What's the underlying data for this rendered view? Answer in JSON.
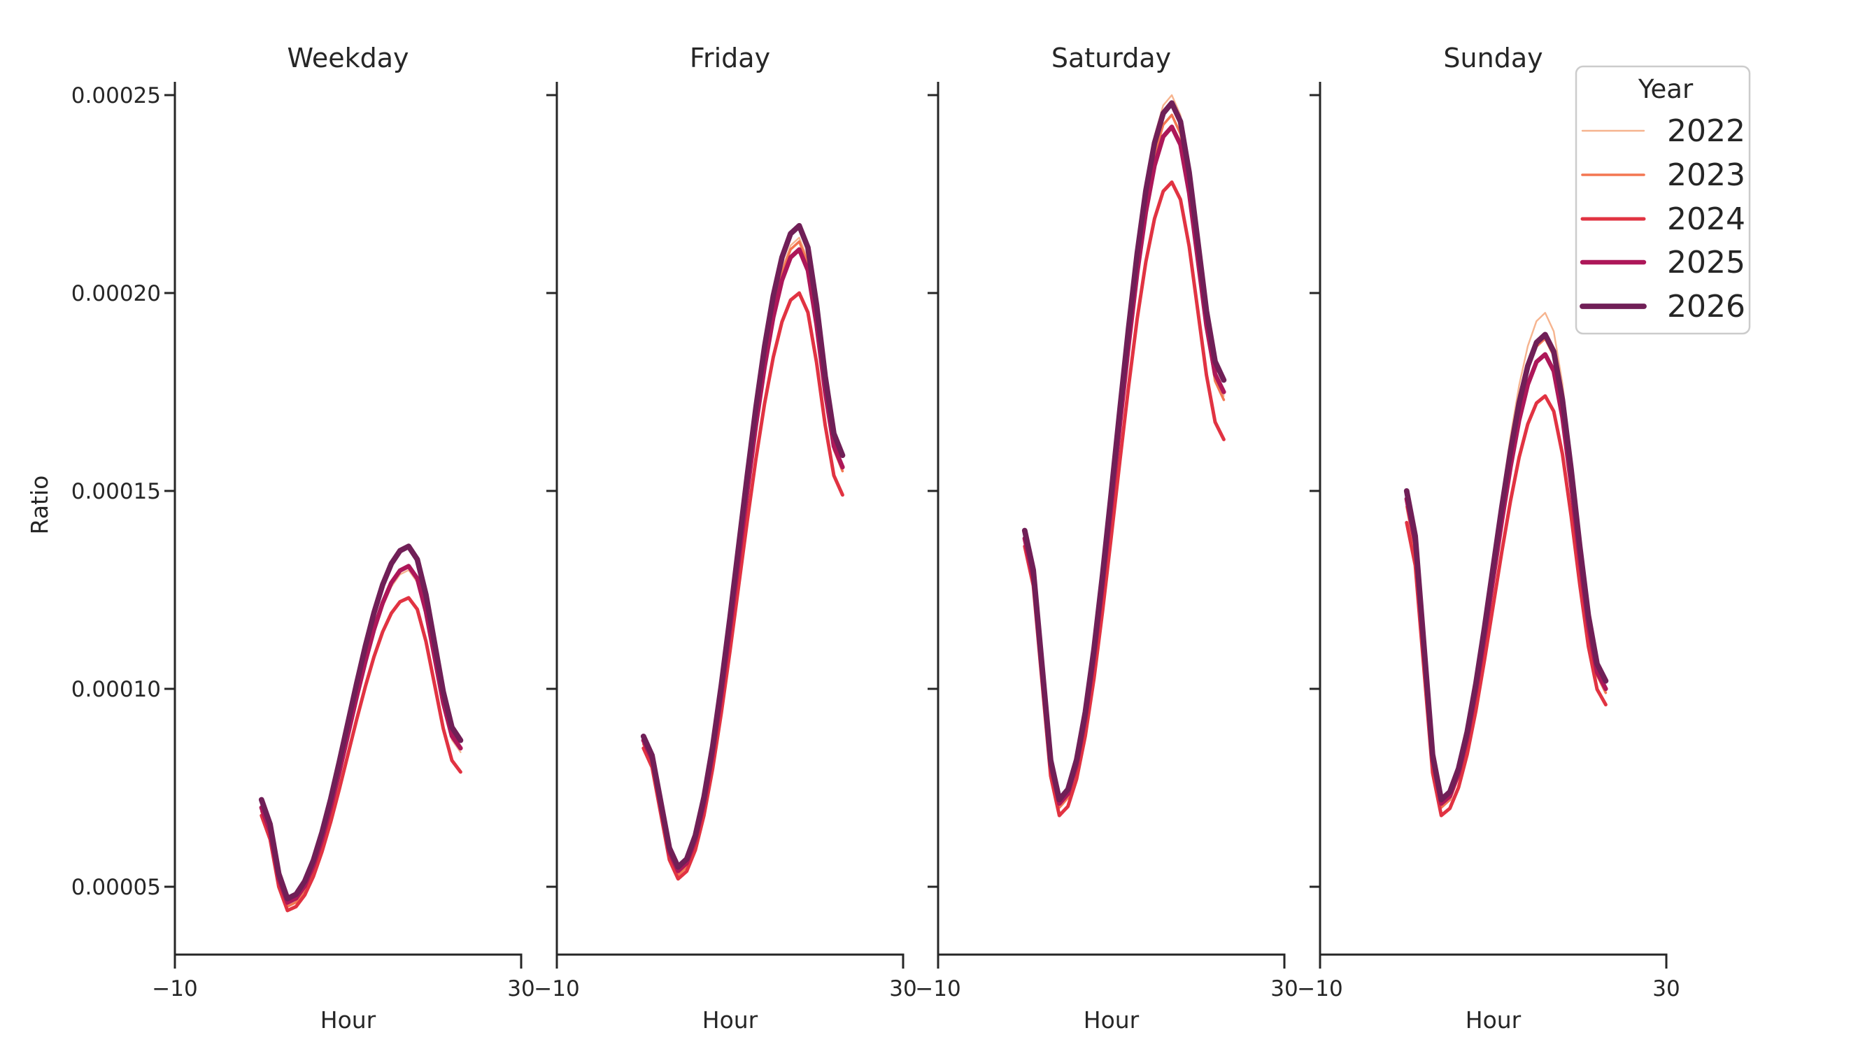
{
  "figure": {
    "background": "#ffffff",
    "text_color": "#262626",
    "spine_color": "#262626",
    "legend_border_color": "#cccccc"
  },
  "y_axis": {
    "label": "Ratio",
    "ticks": [
      {
        "value_x1e5": 5,
        "label": "0.00005"
      },
      {
        "value_x1e5": 10,
        "label": "0.00010"
      },
      {
        "value_x1e5": 15,
        "label": "0.00015"
      },
      {
        "value_x1e5": 20,
        "label": "0.00020"
      },
      {
        "value_x1e5": 25,
        "label": "0.00025"
      }
    ]
  },
  "x_axis": {
    "label": "Hour",
    "ticks": [
      {
        "value": -10,
        "label": "−10"
      },
      {
        "value": 30,
        "label": "30"
      }
    ]
  },
  "legend": {
    "title": "Year",
    "entries": [
      {
        "label": "2022",
        "color": "#f6b48f",
        "linewidth": 2.4
      },
      {
        "label": "2023",
        "color": "#f37651",
        "linewidth": 3.6
      },
      {
        "label": "2024",
        "color": "#e13342",
        "linewidth": 5.0
      },
      {
        "label": "2025",
        "color": "#ad1759",
        "linewidth": 6.4
      },
      {
        "label": "2026",
        "color": "#701f57",
        "linewidth": 7.8
      }
    ]
  },
  "chart_data": {
    "type": "line",
    "facet_titles": [
      "Weekday",
      "Friday",
      "Saturday",
      "Sunday"
    ],
    "xlabel": "Hour",
    "ylabel": "Ratio",
    "xlim": [
      -10,
      30
    ],
    "ylim": [
      3.3e-05,
      0.000253
    ],
    "x_ticks": [
      -10,
      30
    ],
    "y_ticks": [
      5e-05,
      0.0001,
      0.00015,
      0.0002,
      0.00025
    ],
    "grid": false,
    "legend_title": "Year",
    "legend_position": "upper right",
    "hours": [
      0,
      1,
      2,
      3,
      4,
      5,
      6,
      7,
      8,
      9,
      10,
      11,
      12,
      13,
      14,
      15,
      16,
      17,
      18,
      19,
      20,
      21,
      22,
      23
    ],
    "value_scale": 1e-05,
    "series": [
      {
        "name": "2022",
        "color": "#f6b48f",
        "linewidth": 2.4,
        "values_x1e5": {
          "Weekday": [
            6.9,
            6.3,
            5.1,
            4.5,
            4.61,
            4.92,
            5.43,
            6.1,
            6.91,
            7.8,
            8.75,
            9.7,
            10.59,
            11.4,
            12.07,
            12.58,
            12.89,
            13.0,
            12.69,
            11.85,
            10.7,
            9.55,
            8.71,
            8.4
          ],
          "Friday": [
            8.6,
            8.12,
            6.95,
            5.78,
            5.3,
            5.5,
            6.1,
            7.06,
            8.33,
            9.86,
            11.56,
            13.35,
            15.14,
            16.84,
            18.37,
            19.64,
            20.6,
            21.2,
            21.4,
            20.85,
            19.4,
            17.6,
            16.15,
            15.6
          ],
          "Saturday": [
            13.8,
            12.81,
            10.4,
            8.0,
            7.0,
            7.26,
            8.03,
            9.26,
            10.89,
            12.81,
            14.91,
            17.09,
            19.19,
            21.11,
            22.74,
            23.97,
            24.74,
            25.0,
            24.49,
            23.1,
            21.2,
            19.3,
            17.91,
            17.4
          ],
          "Sunday": [
            14.7,
            13.57,
            10.85,
            8.13,
            7.0,
            7.21,
            7.84,
            8.83,
            10.13,
            11.63,
            13.25,
            14.87,
            16.38,
            17.67,
            18.66,
            19.29,
            19.5,
            19.03,
            17.71,
            15.81,
            13.69,
            11.79,
            10.47,
            10.0
          ]
        }
      },
      {
        "name": "2023",
        "color": "#f37651",
        "linewidth": 3.6,
        "values_x1e5": {
          "Weekday": [
            6.9,
            6.3,
            5.1,
            4.5,
            4.61,
            4.93,
            5.44,
            6.12,
            6.93,
            7.84,
            8.8,
            9.76,
            10.67,
            11.48,
            12.16,
            12.67,
            12.99,
            13.1,
            12.79,
            11.95,
            10.8,
            9.65,
            8.81,
            8.5
          ],
          "Friday": [
            8.6,
            8.12,
            6.95,
            5.78,
            5.3,
            5.5,
            6.09,
            7.05,
            8.31,
            9.83,
            11.52,
            13.3,
            15.08,
            16.77,
            18.29,
            19.55,
            20.51,
            21.1,
            21.3,
            20.75,
            19.3,
            17.5,
            16.05,
            15.5
          ],
          "Saturday": [
            13.9,
            12.89,
            10.45,
            8.01,
            7.0,
            7.25,
            8.0,
            9.2,
            10.78,
            12.65,
            14.69,
            16.81,
            18.85,
            20.72,
            22.3,
            23.5,
            24.25,
            24.5,
            24.02,
            22.7,
            20.9,
            19.1,
            17.78,
            17.3
          ],
          "Sunday": [
            14.6,
            13.49,
            10.8,
            8.11,
            7.0,
            7.2,
            7.79,
            8.74,
            9.96,
            11.39,
            12.93,
            14.46,
            15.89,
            17.12,
            18.06,
            18.65,
            18.85,
            18.41,
            17.16,
            15.37,
            13.38,
            11.59,
            10.34,
            9.9
          ]
        }
      },
      {
        "name": "2024",
        "color": "#e13342",
        "linewidth": 5.0,
        "values_x1e5": {
          "Weekday": [
            6.8,
            6.2,
            5.0,
            4.4,
            4.5,
            4.79,
            5.26,
            5.89,
            6.64,
            7.47,
            8.35,
            9.23,
            10.06,
            10.81,
            11.44,
            11.91,
            12.2,
            12.3,
            12.01,
            11.2,
            10.1,
            9.0,
            8.19,
            7.9
          ],
          "Friday": [
            8.5,
            8.02,
            6.85,
            5.68,
            5.2,
            5.39,
            5.93,
            6.81,
            7.99,
            9.39,
            10.95,
            12.6,
            14.25,
            15.81,
            17.21,
            18.38,
            19.27,
            19.82,
            20.0,
            19.51,
            18.24,
            16.66,
            15.39,
            14.9
          ],
          "Saturday": [
            13.6,
            12.61,
            10.2,
            7.8,
            6.8,
            7.03,
            7.72,
            8.81,
            10.25,
            11.96,
            13.84,
            15.76,
            17.64,
            19.35,
            20.79,
            21.88,
            22.57,
            22.8,
            22.36,
            21.18,
            19.55,
            17.93,
            16.74,
            16.3
          ],
          "Sunday": [
            14.2,
            13.12,
            10.5,
            7.88,
            6.8,
            6.98,
            7.51,
            8.35,
            9.45,
            10.73,
            12.1,
            13.47,
            14.75,
            15.85,
            16.69,
            17.22,
            17.4,
            17.01,
            15.93,
            14.37,
            12.63,
            11.07,
            9.99,
            9.6
          ]
        }
      },
      {
        "name": "2025",
        "color": "#ad1759",
        "linewidth": 6.4,
        "values_x1e5": {
          "Weekday": [
            7.0,
            6.4,
            5.2,
            4.6,
            4.71,
            5.02,
            5.53,
            6.2,
            7.01,
            7.9,
            8.85,
            9.8,
            10.69,
            11.5,
            12.17,
            12.68,
            12.99,
            13.1,
            12.79,
            11.95,
            10.8,
            9.65,
            8.81,
            8.5
          ],
          "Friday": [
            8.7,
            8.22,
            7.05,
            5.88,
            5.4,
            5.6,
            6.18,
            7.11,
            8.36,
            9.84,
            11.5,
            13.25,
            15.0,
            16.66,
            18.14,
            19.39,
            20.32,
            20.9,
            21.1,
            20.57,
            19.2,
            17.5,
            16.13,
            15.6
          ],
          "Saturday": [
            13.8,
            12.82,
            10.45,
            8.08,
            7.1,
            7.35,
            8.08,
            9.25,
            10.79,
            12.62,
            14.62,
            16.68,
            18.68,
            20.51,
            22.05,
            23.22,
            23.95,
            24.2,
            23.75,
            22.53,
            20.85,
            19.18,
            17.95,
            17.5
          ],
          "Sunday": [
            14.8,
            13.67,
            10.95,
            8.23,
            7.1,
            7.29,
            7.86,
            8.76,
            9.94,
            11.31,
            12.78,
            14.24,
            15.61,
            16.79,
            17.69,
            18.26,
            18.45,
            18.03,
            16.86,
            15.17,
            13.28,
            11.59,
            10.42,
            10.0
          ]
        }
      },
      {
        "name": "2026",
        "color": "#701f57",
        "linewidth": 7.8,
        "values_x1e5": {
          "Weekday": [
            7.2,
            6.58,
            5.33,
            4.7,
            4.81,
            5.14,
            5.67,
            6.38,
            7.22,
            8.16,
            9.15,
            10.14,
            11.08,
            11.92,
            12.63,
            13.16,
            13.49,
            13.6,
            13.27,
            12.38,
            11.15,
            9.93,
            9.03,
            8.7
          ],
          "Friday": [
            8.8,
            8.32,
            7.15,
            5.98,
            5.5,
            5.7,
            6.3,
            7.27,
            8.55,
            10.09,
            11.8,
            13.6,
            15.4,
            17.11,
            18.65,
            19.93,
            20.9,
            21.5,
            21.7,
            21.15,
            19.7,
            17.9,
            16.45,
            15.9
          ],
          "Saturday": [
            14.0,
            13.0,
            10.6,
            8.2,
            7.2,
            7.46,
            8.21,
            9.41,
            11.0,
            12.88,
            14.94,
            17.06,
            19.12,
            21.0,
            22.59,
            23.79,
            24.54,
            24.8,
            24.33,
            23.05,
            21.3,
            19.55,
            18.27,
            17.8
          ],
          "Sunday": [
            15.0,
            13.86,
            11.1,
            8.34,
            7.2,
            7.4,
            7.99,
            8.92,
            10.14,
            11.55,
            13.08,
            14.6,
            16.01,
            17.23,
            18.16,
            18.75,
            18.95,
            18.52,
            17.3,
            15.55,
            13.6,
            11.85,
            10.63,
            10.2
          ]
        }
      }
    ]
  }
}
